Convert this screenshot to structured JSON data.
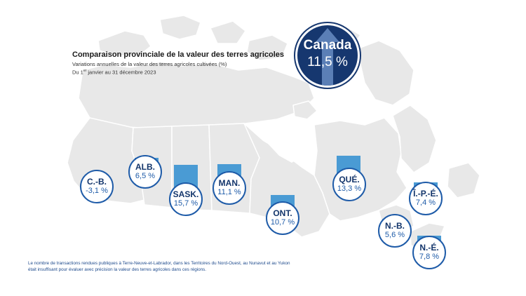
{
  "header": {
    "title": "Comparaison provinciale de la valeur des terres agricoles",
    "subtitle": "Variations annuelles de la valeur des terres agricoles cultivées (%)",
    "period_prefix": "Du 1",
    "period_sup": "er",
    "period_suffix": " janvier au 31 décembre 2023"
  },
  "national": {
    "name": "Canada",
    "value_label": "11,5 %",
    "value": 11.5
  },
  "provinces": [
    {
      "abbr": "C.-B.",
      "value_label": "-3,1 %",
      "value": -3.1
    },
    {
      "abbr": "ALB.",
      "value_label": "6,5 %",
      "value": 6.5
    },
    {
      "abbr": "SASK.",
      "value_label": "15,7 %",
      "value": 15.7
    },
    {
      "abbr": "MAN.",
      "value_label": "11,1 %",
      "value": 11.1
    },
    {
      "abbr": "ONT.",
      "value_label": "10,7 %",
      "value": 10.7
    },
    {
      "abbr": "QUÉ.",
      "value_label": "13,3 %",
      "value": 13.3
    },
    {
      "abbr": "Î.-P.-É.",
      "value_label": "7,4 %",
      "value": 7.4
    },
    {
      "abbr": "N.-B.",
      "value_label": "5,6 %",
      "value": 5.6
    },
    {
      "abbr": "N.-É.",
      "value_label": "7,8 %",
      "value": 7.8
    }
  ],
  "footnote": {
    "line1": "Le nombre de transactions rendues publiques à Terre-Neuve-et-Labrador, dans les Territoires du Nord-Ouest, au Nunavut et au Yukon",
    "line2": "était insuffisant pour évaluer avec précision la valeur des terres agricoles dans ces régions."
  },
  "colors": {
    "land": "#e8e8e8",
    "border": "#ffffff",
    "bar": "#4a9bd4",
    "navy": "#16376f",
    "bubble_border": "#1e5ba8"
  }
}
